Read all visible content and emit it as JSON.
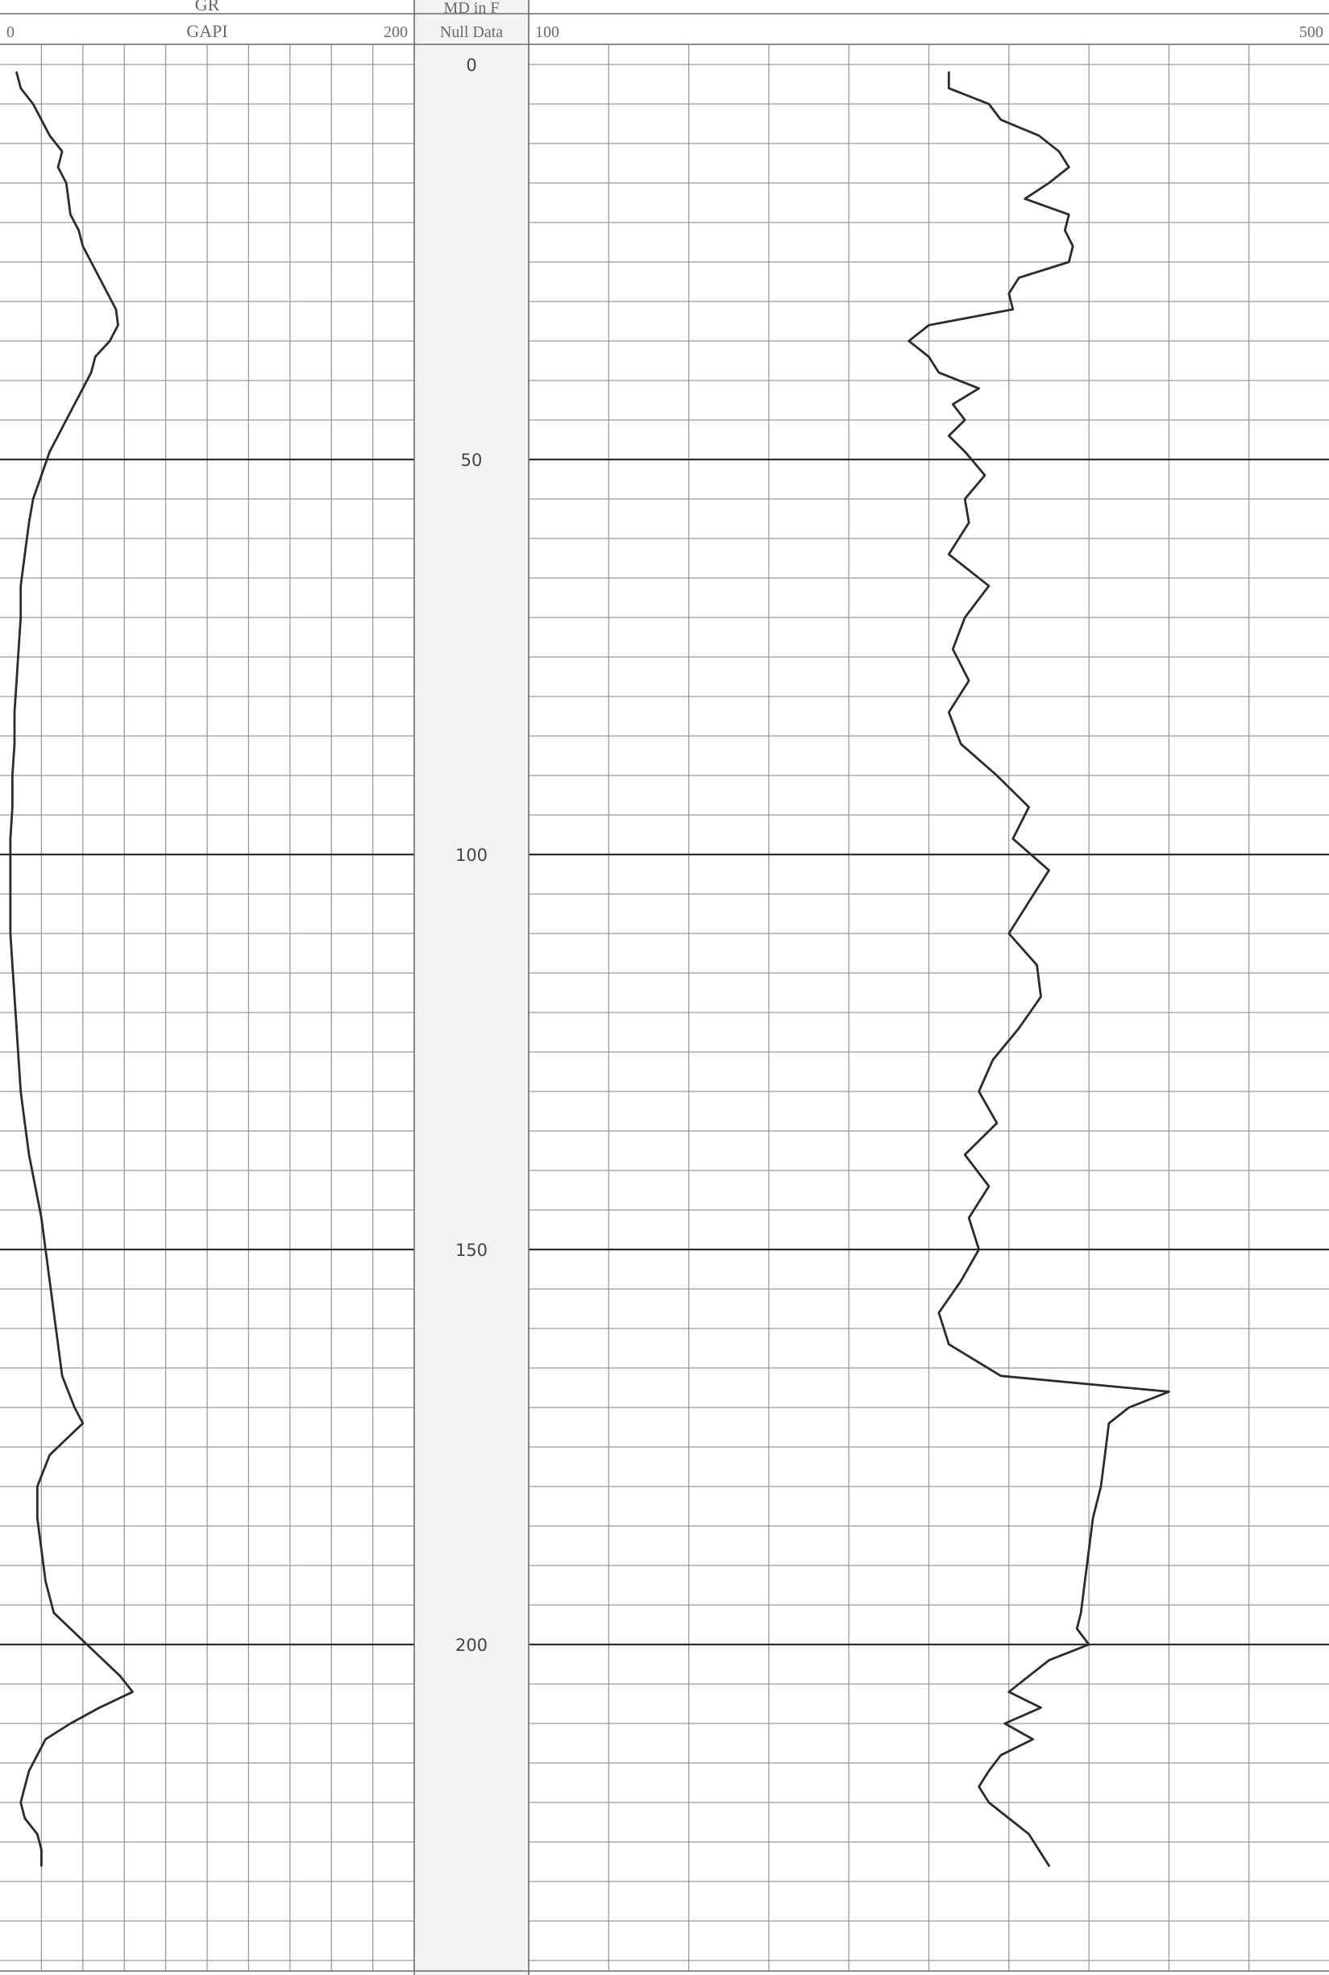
{
  "tracks": {
    "gr": {
      "name": "GR",
      "unit": "GAPI",
      "scale_left": "0",
      "scale_right": "200"
    },
    "depth": {
      "label_line1": "MD in F",
      "label_line2": "Null Data"
    },
    "right": {
      "name": "",
      "scale_left": "100",
      "scale_right": "500"
    }
  },
  "colors": {
    "curve": "#2c2c2c",
    "grid_minor": "#9a9a9a",
    "grid_major": "#2e2e2e",
    "depth_track_bg": "#f3f3f3"
  },
  "chart_data": [
    {
      "type": "line",
      "name": "GR",
      "xlabel": "GAPI",
      "ylabel": "MD in F",
      "xlim": [
        0,
        200
      ],
      "ylim": [
        0,
        240
      ],
      "y_inverted": true,
      "grid": true,
      "x": [
        8,
        10,
        16,
        20,
        24,
        30,
        28,
        32,
        33,
        34,
        38,
        40,
        44,
        48,
        52,
        56,
        57,
        53,
        46,
        44,
        40,
        36,
        32,
        28,
        24,
        20,
        16,
        14,
        12,
        10,
        10,
        9,
        8,
        7,
        7,
        6,
        6,
        5,
        5,
        5,
        5,
        6,
        7,
        8,
        9,
        10,
        12,
        14,
        17,
        20,
        22,
        24,
        26,
        28,
        30,
        33,
        36,
        40,
        24,
        18,
        18,
        20,
        22,
        26,
        34,
        42,
        50,
        58,
        64,
        48,
        34,
        22,
        18,
        14,
        12,
        10,
        12,
        18,
        20,
        20
      ],
      "y": [
        1,
        3,
        5,
        7,
        9,
        11,
        13,
        15,
        17,
        19,
        21,
        23,
        25,
        27,
        29,
        31,
        33,
        35,
        37,
        39,
        41,
        43,
        45,
        47,
        49,
        52,
        55,
        58,
        62,
        66,
        70,
        74,
        78,
        82,
        86,
        90,
        94,
        98,
        102,
        106,
        110,
        114,
        118,
        122,
        126,
        130,
        134,
        138,
        142,
        146,
        150,
        154,
        158,
        162,
        166,
        168,
        170,
        172,
        176,
        180,
        184,
        188,
        192,
        196,
        198,
        200,
        202,
        204,
        206,
        208,
        210,
        212,
        214,
        216,
        218,
        220,
        222,
        224,
        226,
        228
      ]
    },
    {
      "type": "line",
      "name": "",
      "xlim": [
        100,
        500
      ],
      "ylim": [
        0,
        240
      ],
      "y_inverted": true,
      "grid": true,
      "x": [
        310,
        310,
        330,
        336,
        355,
        365,
        370,
        360,
        348,
        370,
        368,
        372,
        370,
        345,
        340,
        342,
        300,
        290,
        300,
        305,
        325,
        312,
        318,
        310,
        318,
        328,
        318,
        320,
        310,
        330,
        318,
        312,
        320,
        310,
        316,
        334,
        350,
        342,
        360,
        350,
        340,
        354,
        356,
        345,
        332,
        325,
        334,
        318,
        330,
        320,
        325,
        316,
        305,
        310,
        336,
        420,
        400,
        390,
        388,
        386,
        382,
        380,
        378,
        376,
        374,
        380,
        360,
        350,
        340,
        356,
        338,
        352,
        336,
        330,
        325,
        330,
        340,
        350,
        355,
        360
      ],
      "y": [
        1,
        3,
        5,
        7,
        9,
        11,
        13,
        15,
        17,
        19,
        21,
        23,
        25,
        27,
        29,
        31,
        33,
        35,
        37,
        39,
        41,
        43,
        45,
        47,
        49,
        52,
        55,
        58,
        62,
        66,
        70,
        74,
        78,
        82,
        86,
        90,
        94,
        98,
        102,
        106,
        110,
        114,
        118,
        122,
        126,
        130,
        134,
        138,
        142,
        146,
        150,
        154,
        158,
        162,
        166,
        168,
        170,
        172,
        176,
        180,
        184,
        188,
        192,
        196,
        198,
        200,
        202,
        204,
        206,
        208,
        210,
        212,
        214,
        216,
        218,
        220,
        222,
        224,
        226,
        228
      ]
    }
  ],
  "depth_labels": [
    "0",
    "50",
    "100",
    "150",
    "200"
  ]
}
